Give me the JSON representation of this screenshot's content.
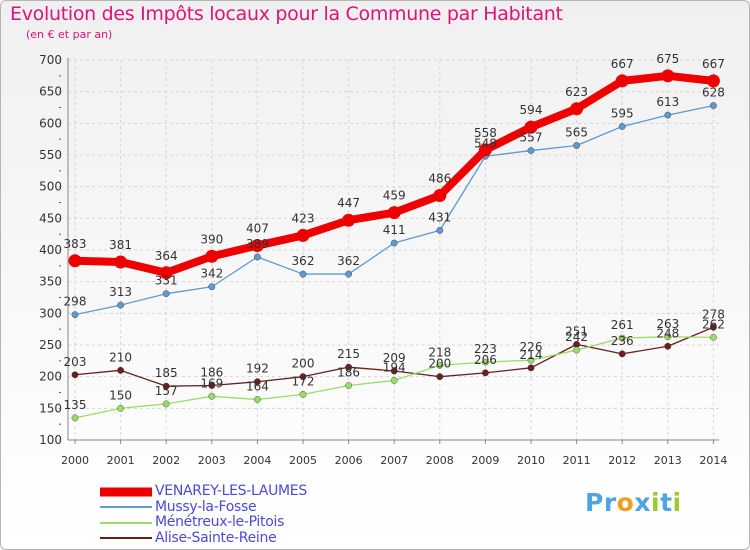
{
  "chart_data": {
    "type": "line",
    "title": "Evolution des Impôts locaux pour la Commune par Habitant",
    "subtitle": "(en € et par an)",
    "x": [
      "2000",
      "2001",
      "2002",
      "2003",
      "2004",
      "2005",
      "2006",
      "2007",
      "2008",
      "2009",
      "2010",
      "2011",
      "2012",
      "2013",
      "2014"
    ],
    "ylim": [
      100,
      700
    ],
    "yticks": [
      100,
      150,
      200,
      250,
      300,
      350,
      400,
      450,
      500,
      550,
      600,
      650,
      700
    ],
    "grid": true,
    "legend_position": "bottom-left",
    "series": [
      {
        "name": "VENAREY-LES-LAUMES",
        "color": "#ee0000",
        "values": [
          383,
          381,
          364,
          390,
          407,
          423,
          447,
          459,
          486,
          558,
          594,
          623,
          667,
          675,
          667
        ]
      },
      {
        "name": "Mussy-la-Fosse",
        "color": "#5e9ad2",
        "values": [
          298,
          313,
          331,
          342,
          389,
          362,
          362,
          411,
          431,
          548,
          557,
          565,
          595,
          613,
          628
        ]
      },
      {
        "name": "Ménétreux-le-Pitois",
        "color": "#99dd66",
        "values": [
          135,
          150,
          157,
          169,
          164,
          172,
          186,
          194,
          218,
          223,
          226,
          242,
          261,
          263,
          262
        ]
      },
      {
        "name": "Alise-Sainte-Reine",
        "color": "#6b1f1f",
        "values": [
          203,
          210,
          185,
          186,
          192,
          200,
          215,
          209,
          200,
          206,
          214,
          251,
          236,
          248,
          278
        ]
      }
    ]
  },
  "logo": {
    "letters": [
      "P",
      "r",
      "o",
      "x",
      "i",
      "t",
      "i"
    ],
    "colors": [
      "#4fa3e0",
      "#4fa3e0",
      "#f0a020",
      "#4fa3e0",
      "#99cc33",
      "#4fa3e0",
      "#99cc33"
    ]
  }
}
